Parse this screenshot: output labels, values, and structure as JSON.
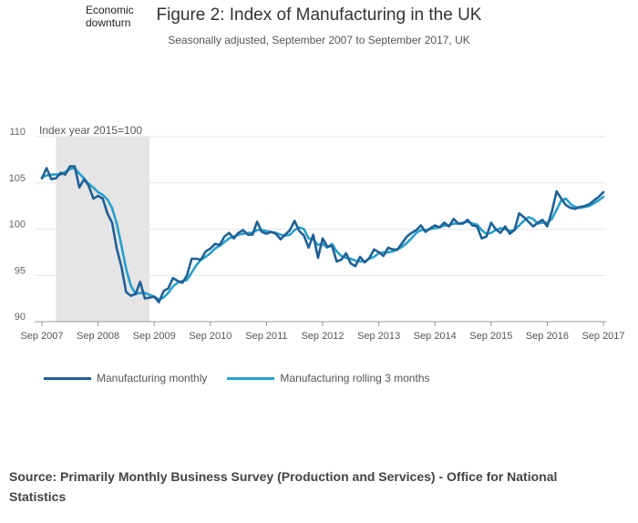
{
  "figure": {
    "title": "Figure 2: Index of Manufacturing in the UK",
    "subtitle": "Seasonally adjusted, September 2007 to September 2017, UK"
  },
  "source_text": "Source: Primarily Monthly Business Survey (Production and Services) - Office for National Statistics",
  "colors": {
    "monthly": "#206095",
    "rolling": "#27a0cc",
    "shade": "#e5e5e5",
    "grid": "#e6e6e6",
    "axis": "#999999"
  },
  "chart_data": {
    "type": "line",
    "title": "Figure 2: Index of Manufacturing in the UK",
    "subtitle": "Seasonally adjusted, September 2007 to September 2017, UK",
    "ylabel": "Index year 2015=100",
    "ylim": [
      90,
      110
    ],
    "yticks": [
      90,
      95,
      100,
      105,
      110
    ],
    "x_start": "Sep 2007",
    "xlim": [
      0,
      120
    ],
    "xticks": [
      {
        "pos": 0,
        "label": "Sep 2007"
      },
      {
        "pos": 12,
        "label": "Sep 2008"
      },
      {
        "pos": 24,
        "label": "Sep 2009"
      },
      {
        "pos": 36,
        "label": "Sep 2010"
      },
      {
        "pos": 48,
        "label": "Sep 2011"
      },
      {
        "pos": 60,
        "label": "Sep 2012"
      },
      {
        "pos": 72,
        "label": "Sep 2013"
      },
      {
        "pos": 84,
        "label": "Sep 2014"
      },
      {
        "pos": 96,
        "label": "Sep 2015"
      },
      {
        "pos": 108,
        "label": "Sep 2016"
      },
      {
        "pos": 120,
        "label": "Sep 2017"
      }
    ],
    "shaded_region": {
      "label": "Economic downturn",
      "x0": 3,
      "x1": 23
    },
    "series": [
      {
        "name": "Manufacturing monthly",
        "values": [
          105.5,
          106.6,
          105.4,
          105.5,
          106.1,
          105.9,
          106.8,
          106.8,
          104.5,
          105.4,
          104.7,
          103.3,
          103.6,
          103.3,
          101.7,
          100.7,
          97.9,
          95.9,
          93.2,
          92.8,
          93.0,
          94.3,
          92.5,
          92.6,
          92.7,
          92.1,
          93.3,
          93.6,
          94.7,
          94.4,
          94.2,
          95.0,
          96.8,
          96.8,
          96.7,
          97.6,
          97.9,
          98.4,
          98.3,
          99.2,
          99.6,
          99.0,
          99.6,
          99.9,
          99.4,
          99.4,
          100.8,
          99.7,
          99.5,
          99.7,
          99.5,
          98.9,
          99.4,
          99.9,
          100.9,
          99.8,
          99.3,
          98.0,
          99.4,
          96.9,
          99.0,
          98.1,
          98.2,
          96.5,
          96.7,
          97.4,
          96.3,
          96.0,
          97.0,
          96.4,
          96.9,
          97.8,
          97.5,
          97.1,
          98.0,
          97.8,
          97.8,
          98.5,
          99.2,
          99.6,
          99.9,
          100.4,
          99.7,
          100.1,
          100.4,
          100.2,
          100.7,
          100.3,
          101.1,
          100.6,
          100.6,
          101.0,
          100.4,
          100.3,
          99.0,
          99.2,
          100.7,
          100.0,
          99.6,
          100.3,
          99.5,
          99.9,
          101.7,
          101.3,
          100.8,
          100.3,
          100.7,
          101.0,
          100.3,
          101.9,
          104.1,
          103.3,
          102.6,
          102.3,
          102.2,
          102.4,
          102.5,
          102.7,
          103.1,
          103.5,
          104.0
        ]
      },
      {
        "name": "Manufacturing rolling 3 months",
        "values": [
          105.6,
          105.8,
          105.9,
          105.9,
          105.9,
          106.2,
          106.5,
          106.6,
          106.0,
          105.5,
          104.9,
          104.5,
          104.0,
          103.7,
          103.2,
          102.3,
          100.6,
          98.2,
          95.7,
          93.9,
          93.0,
          93.1,
          93.1,
          92.9,
          92.7,
          92.4,
          92.6,
          93.1,
          93.8,
          94.2,
          94.4,
          94.5,
          95.3,
          96.1,
          96.7,
          97.0,
          97.4,
          97.9,
          98.2,
          98.6,
          99.0,
          99.2,
          99.4,
          99.5,
          99.6,
          99.6,
          99.9,
          99.9,
          99.8,
          99.7,
          99.6,
          99.4,
          99.3,
          99.4,
          99.9,
          100.2,
          100.0,
          99.0,
          98.9,
          98.3,
          98.4,
          98.0,
          98.4,
          97.6,
          97.1,
          96.9,
          96.8,
          96.6,
          96.5,
          96.5,
          96.8,
          97.0,
          97.4,
          97.5,
          97.5,
          97.6,
          97.8,
          98.1,
          98.5,
          99.0,
          99.6,
          99.9,
          99.9,
          100.0,
          100.1,
          100.2,
          100.4,
          100.4,
          100.6,
          100.6,
          100.7,
          100.8,
          100.6,
          100.5,
          99.9,
          99.5,
          99.6,
          99.9,
          100.1,
          100.0,
          99.8,
          99.9,
          100.4,
          100.9,
          101.3,
          101.1,
          100.6,
          100.7,
          100.7,
          101.1,
          102.1,
          103.1,
          103.3,
          102.7,
          102.4,
          102.3,
          102.4,
          102.5,
          102.8,
          103.1,
          103.5
        ]
      }
    ],
    "legend": "bottom-left"
  }
}
